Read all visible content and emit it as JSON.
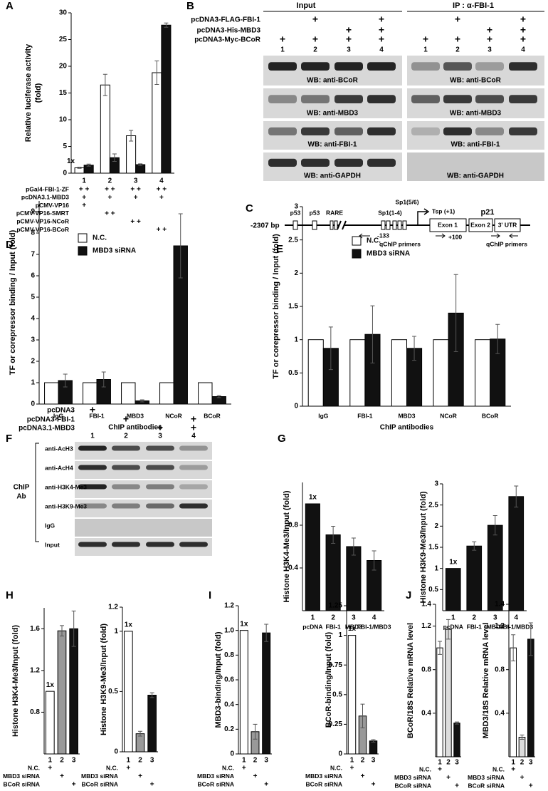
{
  "panel_labels": [
    "A",
    "B",
    "C",
    "D",
    "E",
    "F",
    "G",
    "H",
    "I",
    "J"
  ],
  "blot_B": {
    "header_left": "Input",
    "header_right": "IP : α-FBI-1",
    "rows": [
      {
        "label": "pcDNA3-FLAG-FBI-1",
        "marks": [
          null,
          "+",
          null,
          "+"
        ]
      },
      {
        "label": "pcDNA3-His-MBD3",
        "marks": [
          null,
          null,
          "+",
          "+"
        ]
      },
      {
        "label": "pcDNA3-Myc-BCoR",
        "marks": [
          "+",
          "+",
          "+",
          "+"
        ]
      }
    ],
    "lanes": [
      "1",
      "2",
      "3",
      "4"
    ],
    "input_captions": [
      "WB: anti-BCoR",
      "WB: anti-MBD3",
      "WB: anti-FBI-1",
      "WB: anti-GAPDH"
    ],
    "ip_captions": [
      "WB: anti-BCoR",
      "WB: anti-MBD3",
      "WB: anti-FBI-1",
      "WB: anti-GAPDH"
    ]
  },
  "diagram_C": {
    "start": "-2307 bp",
    "elements": [
      "p53",
      "p53",
      "RARE",
      "Sp1(1-4)",
      "Sp1(5/6)",
      "Tsp (+1)",
      "Exon 1",
      "Exon 2",
      "3' UTR"
    ],
    "gene": "p21",
    "positions": [
      "-133",
      "+100"
    ],
    "primers": [
      "qChIP primers",
      "qChIP primers"
    ]
  },
  "blot_F": {
    "rows": [
      {
        "label": "pcDNA3",
        "marks": [
          "+",
          null,
          null,
          null
        ]
      },
      {
        "label": "pcDNA3-FBI-1",
        "marks": [
          null,
          "+",
          null,
          "+"
        ]
      },
      {
        "label": "pcDNA3.1-MBD3",
        "marks": [
          null,
          null,
          "+",
          "+"
        ]
      }
    ],
    "lanes": [
      "1",
      "2",
      "3",
      "4"
    ],
    "antibodies": [
      "anti-AcH3",
      "anti-AcH4",
      "anti-H3K4-Me3",
      "anti-H3K9-Me3",
      "IgG",
      "Input"
    ],
    "group_label": [
      "ChIP",
      "Ab"
    ]
  },
  "chart_data": [
    {
      "type": "bar",
      "ylabel": [
        "Relative luciferase activity",
        "(fold)"
      ],
      "categories": [
        "1",
        "2",
        "3",
        "4"
      ],
      "series": [
        {
          "color": "#ffffff",
          "values": [
            1,
            16.5,
            7,
            18.8
          ],
          "errors": [
            0.1,
            2,
            1,
            2.2
          ]
        },
        {
          "color": "#111111",
          "values": [
            1.5,
            2.9,
            1.6,
            27.7
          ],
          "errors": [
            0.2,
            0.7,
            0.15,
            0.4
          ]
        }
      ],
      "ylim": [
        0,
        30
      ],
      "yticks": [
        0,
        5,
        10,
        15,
        20,
        25,
        30
      ],
      "annotation": "1x",
      "treatments": [
        {
          "label": "pGal4-FBI-1-ZF",
          "marks": [
            "+ +",
            "+ +",
            "+ +",
            "+ +"
          ]
        },
        {
          "label": "pcDNA3.1-MBD3",
          "marks": [
            "+",
            "+",
            "+",
            "+"
          ]
        },
        {
          "label": "pCMV-VP16",
          "marks": [
            "+",
            null,
            null,
            null
          ]
        },
        {
          "label": "pCMV-VP16-SMRT",
          "marks": [
            null,
            "+ +",
            null,
            null
          ]
        },
        {
          "label": "pCMV-VP16-NCoR",
          "marks": [
            null,
            null,
            "+ +",
            null
          ]
        },
        {
          "label": "pCMV-VP16-BCoR",
          "marks": [
            null,
            null,
            null,
            "+ +"
          ]
        }
      ]
    },
    {
      "type": "bar",
      "ylabel": "TF or corepressor binding / Input (fold)",
      "xlabel": "ChIP antibodies",
      "categories": [
        "IgG",
        "FBI-1",
        "MBD3",
        "NCoR",
        "BCoR"
      ],
      "series": [
        {
          "name": "N.C.",
          "color": "#ffffff",
          "values": [
            1,
            1,
            1,
            1,
            1
          ],
          "errors": [
            null,
            null,
            null,
            null,
            null
          ]
        },
        {
          "name": "MBD3 siRNA",
          "color": "#111111",
          "values": [
            1.1,
            1.15,
            0.15,
            7.4,
            0.35
          ],
          "errors": [
            0.3,
            0.35,
            0.05,
            1.5,
            0.05
          ]
        }
      ],
      "ylim": [
        0,
        9.5
      ],
      "yticks": [
        0,
        1,
        2,
        3,
        4,
        5,
        6,
        7,
        8,
        9
      ],
      "legend": "upper left"
    },
    {
      "type": "bar",
      "ylabel": "TF or corepressor binding / Input (fold)",
      "xlabel": "ChIP antibodies",
      "categories": [
        "IgG",
        "FBI-1",
        "MBD3",
        "NCoR",
        "BCoR"
      ],
      "series": [
        {
          "name": "N.C.",
          "color": "#ffffff",
          "values": [
            1,
            1,
            1,
            1,
            1
          ],
          "errors": [
            null,
            null,
            null,
            null,
            null
          ]
        },
        {
          "name": "MBD3 siRNA",
          "color": "#111111",
          "values": [
            0.87,
            1.08,
            0.87,
            1.4,
            1.01
          ],
          "errors": [
            0.32,
            0.43,
            0.18,
            0.58,
            0.22
          ]
        }
      ],
      "ylim": [
        0,
        3
      ],
      "yticks": [
        0,
        0.5,
        1,
        1.5,
        2,
        2.5,
        3
      ],
      "legend": "upper left"
    },
    {
      "type": "bar",
      "ylabel": "Histone H3K4-Me3/Input (fold)",
      "lanes": [
        "1",
        "2",
        "3",
        "4"
      ],
      "categories": [
        "pcDNA",
        "FBI-1",
        "MBD3",
        "FBI-1/MBD3"
      ],
      "series": [
        {
          "color": "#111111",
          "values": [
            1,
            0.71,
            0.6,
            0.47
          ],
          "errors": [
            null,
            0.08,
            0.08,
            0.09
          ]
        }
      ],
      "ylim": [
        0,
        1.2
      ],
      "yticks": [
        0.4,
        0.8
      ],
      "annotation": "1x"
    },
    {
      "type": "bar",
      "ylabel": "Histone H3K9-Me3/Input (fold)",
      "lanes": [
        "1",
        "2",
        "3",
        "4"
      ],
      "categories": [
        "pcDNA",
        "FBI-1",
        "MBD3",
        "FBI-1/MBD3"
      ],
      "series": [
        {
          "color": "#111111",
          "values": [
            1,
            1.53,
            2.02,
            2.7
          ],
          "errors": [
            null,
            0.1,
            0.23,
            0.25
          ]
        }
      ],
      "ylim": [
        0,
        3
      ],
      "yticks": [
        0.5,
        1,
        1.5,
        2,
        2.5,
        3
      ],
      "annotation": "1x"
    },
    {
      "type": "bar",
      "ylabel": "Histone H3K4-Me3/Input (fold)",
      "categories": [
        "1",
        "2",
        "3"
      ],
      "series": [
        {
          "colors": [
            "#ffffff",
            "#999999",
            "#111111"
          ],
          "values": [
            1,
            1.58,
            1.6
          ],
          "errors": [
            null,
            0.05,
            0.17
          ]
        }
      ],
      "ylim": [
        0.4,
        1.8
      ],
      "yticks": [
        0.8,
        1.2,
        1.6
      ],
      "annotation": "1x",
      "treatments": [
        {
          "label": "N.C.",
          "marks": [
            "+",
            null,
            null
          ]
        },
        {
          "label": "MBD3 siRNA",
          "marks": [
            null,
            "+",
            null
          ]
        },
        {
          "label": "BCoR siRNA",
          "marks": [
            null,
            null,
            "+"
          ]
        }
      ]
    },
    {
      "type": "bar",
      "ylabel": "Histone H3K9-Me3/Input (fold)",
      "categories": [
        "1",
        "2",
        "3"
      ],
      "series": [
        {
          "colors": [
            "#ffffff",
            "#999999",
            "#111111"
          ],
          "values": [
            1,
            0.15,
            0.47
          ],
          "errors": [
            null,
            0.02,
            0.02
          ]
        }
      ],
      "ylim": [
        0,
        1.2
      ],
      "yticks": [
        0,
        0.5,
        1,
        1.2
      ],
      "annotation": "1x",
      "treatments": [
        {
          "label": "N.C.",
          "marks": [
            "+",
            null,
            null
          ]
        },
        {
          "label": "MBD3 siRNA",
          "marks": [
            null,
            "+",
            null
          ]
        },
        {
          "label": "BCoR siRNA",
          "marks": [
            null,
            null,
            "+"
          ]
        }
      ]
    },
    {
      "type": "bar",
      "ylabel": "MBD3-binding/Input (fold)",
      "categories": [
        "1",
        "2",
        "3"
      ],
      "series": [
        {
          "colors": [
            "#ffffff",
            "#999999",
            "#111111"
          ],
          "values": [
            1,
            0.18,
            0.98
          ],
          "errors": [
            null,
            0.06,
            0.07
          ]
        }
      ],
      "ylim": [
        0,
        1.2
      ],
      "yticks": [
        0,
        0.2,
        0.4,
        0.6,
        0.8,
        {
          "value": 1,
          "label": "1.0"
        },
        1.2
      ],
      "annotation": "1x",
      "treatments": [
        {
          "label": "N.C.",
          "marks": [
            "+",
            null,
            null
          ]
        },
        {
          "label": "MBD3 siRNA",
          "marks": [
            null,
            "+",
            null
          ]
        },
        {
          "label": "BCoR siRNA",
          "marks": [
            null,
            null,
            "+"
          ]
        }
      ]
    },
    {
      "type": "bar",
      "ylabel": "BCoR-binding/Input (fold)",
      "categories": [
        "1",
        "2",
        "3"
      ],
      "series": [
        {
          "colors": [
            "#ffffff",
            "#999999",
            "#111111"
          ],
          "values": [
            1,
            0.32,
            0.11
          ],
          "errors": [
            null,
            0.1,
            0.01
          ]
        }
      ],
      "ylim": [
        0,
        1.25
      ],
      "yticks": [
        0,
        0.25,
        0.5,
        0.75,
        1,
        1.25
      ],
      "annotation": "1x",
      "treatments": [
        {
          "label": "N.C.",
          "marks": [
            "+",
            null,
            null
          ]
        },
        {
          "label": "MBD3 siRNA",
          "marks": [
            null,
            "+",
            null
          ]
        },
        {
          "label": "BCoR siRNA",
          "marks": [
            null,
            null,
            "+"
          ]
        }
      ]
    },
    {
      "type": "bar",
      "ylabel": "BCoR/18S  Relative mRNA level",
      "categories": [
        "1",
        "2",
        "3"
      ],
      "series": [
        {
          "colors": [
            "#ffffff",
            "#dddddd",
            "#111111"
          ],
          "values": [
            1,
            1.17,
            0.31
          ],
          "errors": [
            0.06,
            0.09,
            0.01
          ]
        }
      ],
      "ylim": [
        0,
        1.4
      ],
      "yticks": [
        0.4,
        0.8,
        1.2,
        1.4
      ],
      "treatments": [
        {
          "label": "N.C.",
          "marks": [
            "+",
            null,
            null
          ]
        },
        {
          "label": "MBD3 siRNA",
          "marks": [
            null,
            "+",
            null
          ]
        },
        {
          "label": "BCoR siRNA",
          "marks": [
            null,
            null,
            "+"
          ]
        }
      ]
    },
    {
      "type": "bar",
      "ylabel": "MBD3/18S  Relative mRNA level",
      "categories": [
        "1",
        "2",
        "3"
      ],
      "series": [
        {
          "colors": [
            "#ffffff",
            "#dddddd",
            "#111111"
          ],
          "values": [
            1,
            0.18,
            1.08
          ],
          "errors": [
            0.12,
            0.02,
            0.15
          ]
        }
      ],
      "ylim": [
        0,
        1.4
      ],
      "yticks": [
        0.4,
        0.8,
        1.2,
        1.4
      ],
      "treatments": [
        {
          "label": "N.C.",
          "marks": [
            "+",
            null,
            null
          ]
        },
        {
          "label": "MBD3 siRNA",
          "marks": [
            null,
            "+",
            null
          ]
        },
        {
          "label": "BCoR siRNA",
          "marks": [
            null,
            null,
            "+"
          ]
        }
      ]
    }
  ]
}
